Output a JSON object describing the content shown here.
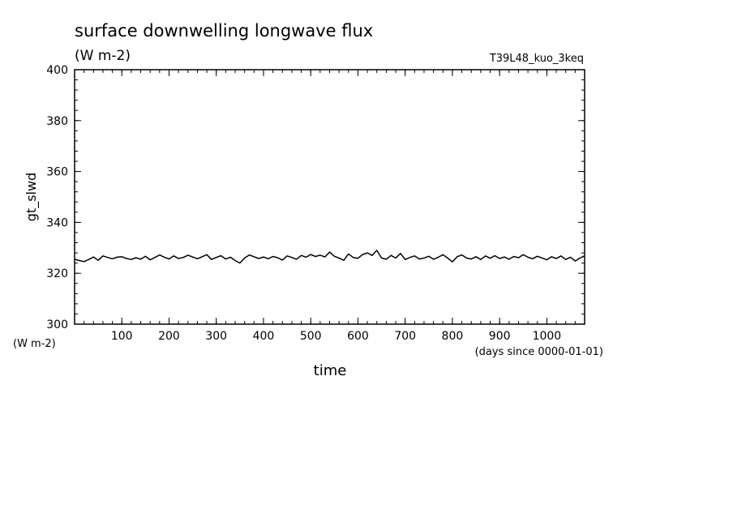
{
  "chart_data": {
    "type": "line",
    "title": "surface downwelling longwave flux",
    "subtitle": "(W m-2)",
    "run_label": "T39L48_kuo_3keq",
    "xlabel": "time",
    "x_units": "(days since 0000-01-01)",
    "ylabel": "gt_slwd",
    "y_units": "(W m-2)",
    "xlim": [
      0,
      1080
    ],
    "ylim": [
      300,
      400
    ],
    "x_ticks": [
      100,
      200,
      300,
      400,
      500,
      600,
      700,
      800,
      900,
      1000
    ],
    "y_ticks": [
      300,
      320,
      340,
      360,
      380,
      400
    ],
    "grid": false,
    "line_color": "#000000",
    "series": [
      {
        "x": [
          0,
          10,
          20,
          30,
          40,
          50,
          60,
          70,
          80,
          90,
          100,
          110,
          120,
          130,
          140,
          150,
          160,
          170,
          180,
          190,
          200,
          210,
          220,
          230,
          240,
          250,
          260,
          270,
          280,
          290,
          300,
          310,
          320,
          330,
          340,
          350,
          360,
          370,
          380,
          390,
          400,
          410,
          420,
          430,
          440,
          450,
          460,
          470,
          480,
          490,
          500,
          510,
          520,
          530,
          540,
          550,
          560,
          570,
          580,
          590,
          600,
          610,
          620,
          630,
          640,
          650,
          660,
          670,
          680,
          690,
          700,
          710,
          720,
          730,
          740,
          750,
          760,
          770,
          780,
          790,
          800,
          810,
          820,
          830,
          840,
          850,
          860,
          870,
          880,
          890,
          900,
          910,
          920,
          930,
          940,
          950,
          960,
          970,
          980,
          990,
          1000,
          1010,
          1020,
          1030,
          1040,
          1050,
          1060,
          1070,
          1080
        ],
        "values": [
          325.5,
          325.0,
          324.6,
          325.4,
          326.4,
          325.1,
          326.8,
          326.2,
          325.7,
          326.3,
          326.5,
          325.8,
          325.4,
          326.1,
          325.5,
          326.7,
          325.3,
          326.2,
          327.2,
          326.3,
          325.6,
          326.8,
          325.8,
          326.2,
          327.1,
          326.4,
          325.7,
          326.5,
          327.3,
          325.4,
          326.2,
          326.9,
          325.6,
          326.3,
          325.0,
          324.0,
          326.0,
          327.2,
          326.5,
          325.8,
          326.4,
          325.7,
          326.6,
          326.1,
          325.2,
          326.8,
          326.2,
          325.5,
          327.0,
          326.3,
          327.4,
          326.6,
          327.1,
          326.4,
          328.3,
          326.7,
          326.0,
          325.1,
          327.6,
          326.2,
          325.9,
          327.4,
          328.0,
          327.0,
          329.0,
          326.0,
          325.5,
          327.0,
          326.0,
          327.8,
          325.4,
          326.2,
          326.8,
          325.6,
          326.0,
          326.7,
          325.5,
          326.3,
          327.3,
          326.0,
          324.5,
          326.5,
          327.2,
          326.0,
          325.6,
          326.5,
          325.4,
          326.8,
          325.9,
          326.9,
          325.8,
          326.4,
          325.5,
          326.6,
          326.1,
          327.3,
          326.3,
          325.7,
          326.7,
          326.0,
          325.3,
          326.5,
          325.8,
          326.8,
          325.4,
          326.3,
          324.8,
          326.0,
          326.8
        ]
      }
    ]
  }
}
